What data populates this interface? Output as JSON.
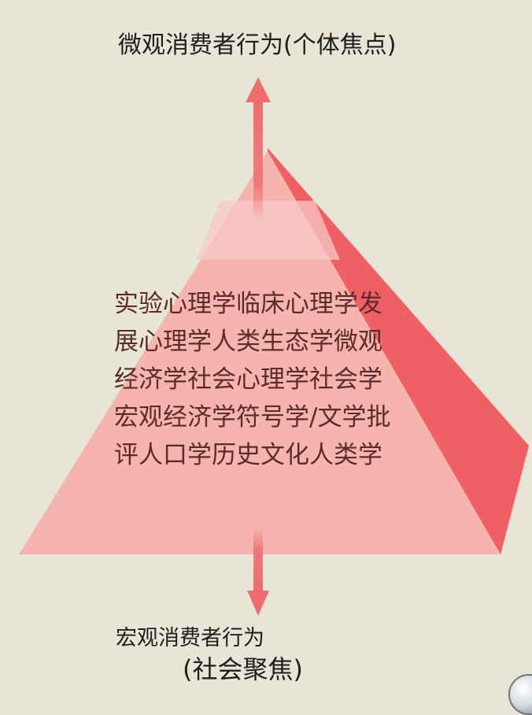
{
  "diagram": {
    "top_label": "微观消费者行为(个体焦点)",
    "bottom_label_line1": "宏观消费者行为",
    "bottom_label_line2": "(社会聚焦)",
    "disciplines_lines": [
      "实验心理学临床心理学发",
      "展心理学人类生态学微观",
      "经济学社会心理学社会学",
      "宏观经济学符号学/文学批",
      "评人口学历史文化人类学"
    ],
    "colors": {
      "background": "#e7e6d6",
      "pyramid_front": "#f5b4ae",
      "pyramid_side": "#ef5f63",
      "arrow": "#ef6d70",
      "text": "#5c2b2b"
    }
  }
}
